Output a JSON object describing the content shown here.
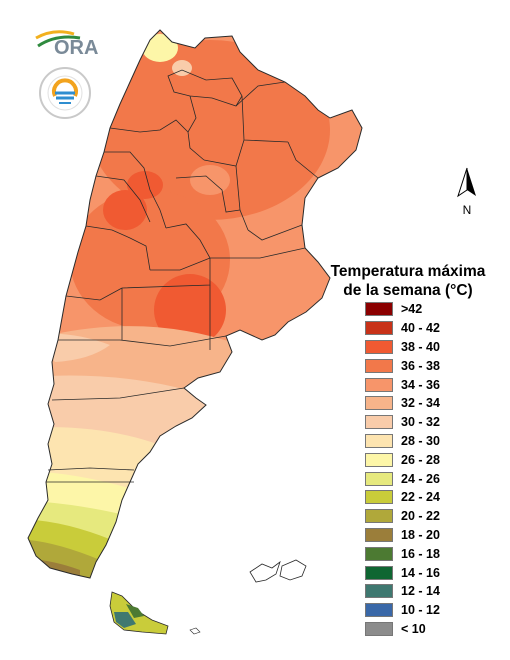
{
  "logos": {
    "ora": "ORA",
    "smn_ring": "SERVICIO METEOROLÓGICO NACIONAL · ARGENTINA"
  },
  "north_arrow": {
    "label": "N"
  },
  "legend": {
    "title_line1": "Temperatura máxima",
    "title_line2": "de la semana (°C)",
    "items": [
      {
        "label": ">42",
        "color": "#8b0000"
      },
      {
        "label": "40 - 42",
        "color": "#c83218"
      },
      {
        "label": "38 - 40",
        "color": "#f05a32"
      },
      {
        "label": "36 - 38",
        "color": "#f2784a"
      },
      {
        "label": "34 - 36",
        "color": "#f7956a"
      },
      {
        "label": "32 - 34",
        "color": "#f7b48a"
      },
      {
        "label": "30 - 32",
        "color": "#f9ccaa"
      },
      {
        "label": "28 - 30",
        "color": "#fde4b0"
      },
      {
        "label": "26 - 28",
        "color": "#fdf6a8"
      },
      {
        "label": "24 - 26",
        "color": "#e6e97e"
      },
      {
        "label": "22 - 24",
        "color": "#c9cc3a"
      },
      {
        "label": "20 - 22",
        "color": "#b0a83a"
      },
      {
        "label": "18 - 20",
        "color": "#9b7e3a"
      },
      {
        "label": "16 - 18",
        "color": "#4c7a32"
      },
      {
        "label": "14 - 16",
        "color": "#0f6632"
      },
      {
        "label": "12 - 14",
        "color": "#3f7870"
      },
      {
        "label": "10 - 12",
        "color": "#3a68a8"
      },
      {
        "label": "< 10",
        "color": "#8c8c8c"
      }
    ]
  }
}
